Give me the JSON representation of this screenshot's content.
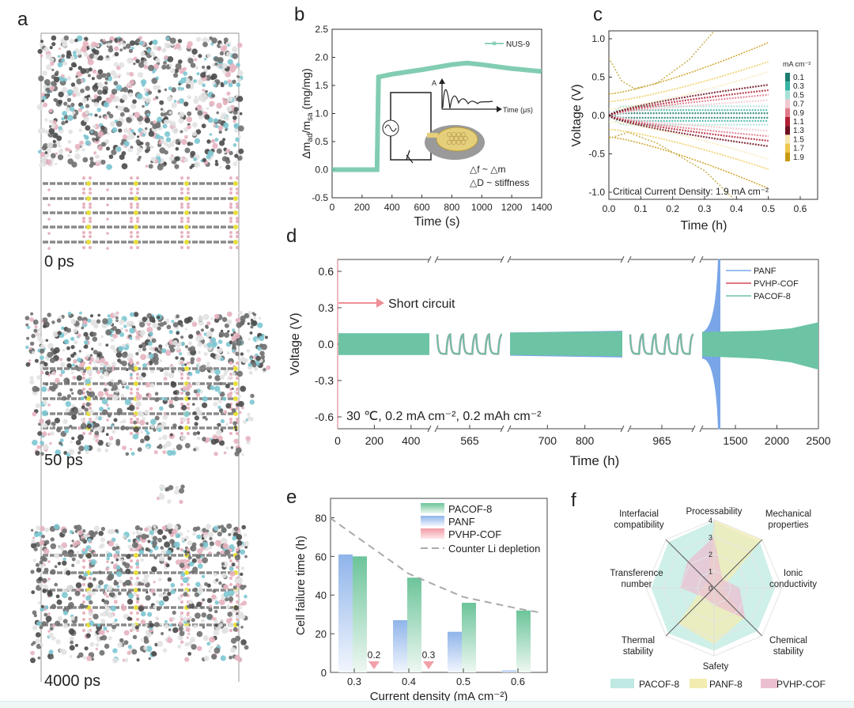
{
  "panel_labels": {
    "a": "a",
    "b": "b",
    "c": "c",
    "d": "d",
    "e": "e",
    "f": "f"
  },
  "panel_a": {
    "frames": [
      "0 ps",
      "50 ps",
      "4000 ps"
    ],
    "atom_colors": {
      "carbon": "#6f6f6f",
      "dark": "#4a4a4a",
      "nitrogen": "#7cc6d2",
      "oxygen": "#e6b3bf",
      "hydrogen": "#e2e2e2",
      "sulfur": "#e9e03a"
    }
  },
  "chart_data": [
    {
      "panel": "b",
      "type": "line",
      "xlabel": "Time (s)",
      "ylabel_parts": [
        "Δm",
        "ad",
        "/m",
        "sa",
        " (mg/mg)"
      ],
      "xlim": [
        0,
        1400
      ],
      "ylim": [
        -0.5,
        2.5
      ],
      "xticks": [
        "0",
        "200",
        "400",
        "600",
        "800",
        "1000",
        "1200",
        "1400"
      ],
      "yticks": [
        "-0.5",
        "0.0",
        "0.5",
        "1.0",
        "1.5",
        "2.0",
        "2.5"
      ],
      "legend": "top-right",
      "series": [
        {
          "name": "NUS-9",
          "color": "#6cc4a4",
          "points": [
            [
              0,
              0
            ],
            [
              300,
              0
            ],
            [
              310,
              1.65
            ],
            [
              400,
              1.7
            ],
            [
              600,
              1.78
            ],
            [
              800,
              1.87
            ],
            [
              900,
              1.9
            ],
            [
              1000,
              1.87
            ],
            [
              1200,
              1.8
            ],
            [
              1400,
              1.75
            ]
          ]
        }
      ],
      "inset": {
        "amp_label": "A",
        "time_label": "Time (μs)",
        "eq1": "△f ~ △m",
        "eq2": "△D ~ stiffness"
      }
    },
    {
      "panel": "c",
      "type": "line",
      "xlabel": "Time (h)",
      "ylabel": "Voltage (V)",
      "xlim": [
        0,
        0.65
      ],
      "ylim": [
        -1.1,
        1.1
      ],
      "xticks": [
        "0.0",
        "0.1",
        "0.2",
        "0.3",
        "0.4",
        "0.5",
        "0.6"
      ],
      "yticks": [
        "-1.0",
        "-0.5",
        "0.0",
        "0.5",
        "1.0"
      ],
      "colorbar_title": "mA cm⁻²",
      "colorbar_labels": [
        "0.1",
        "0.3",
        "0.5",
        "0.7",
        "0.9",
        "1.1",
        "1.3",
        "1.5",
        "1.7",
        "1.9"
      ],
      "colorbar_colors": [
        "#1d7d70",
        "#36b3a3",
        "#a9e0d8",
        "#f0c9d0",
        "#e07a8a",
        "#b21e33",
        "#6d1020",
        "#f6e7b0",
        "#efc54a",
        "#c89a12"
      ],
      "curve_end_voltage": [
        0.03,
        0.07,
        0.12,
        0.2,
        0.27,
        0.33,
        0.4,
        0.57,
        0.7,
        0.95
      ],
      "critical_upper": [
        [
          0,
          0.75
        ],
        [
          0.04,
          0.45
        ],
        [
          0.08,
          0.35
        ],
        [
          0.15,
          0.42
        ],
        [
          0.25,
          0.72
        ],
        [
          0.33,
          1.1
        ]
      ],
      "critical_lower": [
        [
          0,
          -0.3
        ],
        [
          0.06,
          -0.22
        ],
        [
          0.15,
          -0.36
        ],
        [
          0.3,
          -0.72
        ],
        [
          0.39,
          -1.08
        ]
      ],
      "annotation": "Critical Current Density: 1.9 mA cm⁻²"
    },
    {
      "panel": "d",
      "type": "line",
      "xlabel": "Time (h)",
      "ylabel": "Voltage (V)",
      "ylim": [
        -0.7,
        0.7
      ],
      "yticks": [
        "-0.6",
        "-0.3",
        "0.0",
        "0.3",
        "0.6"
      ],
      "x_segments": [
        {
          "range": [
            0,
            500
          ],
          "ticks": [
            "0",
            "200",
            "400"
          ]
        },
        {
          "range": [
            540,
            590
          ],
          "ticks": [
            "565"
          ]
        },
        {
          "range": [
            600,
            900
          ],
          "ticks": [
            "700",
            "800"
          ]
        },
        {
          "range": [
            940,
            990
          ],
          "ticks": [
            "965"
          ]
        },
        {
          "range": [
            1100,
            2500
          ],
          "ticks": [
            "1500",
            "2000",
            "2500"
          ]
        }
      ],
      "legend": "top-right",
      "series": [
        {
          "name": "PANF",
          "color": "#7aa6e8",
          "short_circuit_time": 1300
        },
        {
          "name": "PVHP-COF",
          "color": "#d9485c"
        },
        {
          "name": "PACOF-8",
          "color": "#6cc4a4",
          "amplitude_start": 0.09,
          "amplitude_end_upper": 0.18,
          "amplitude_end_lower": -0.21
        }
      ],
      "annotation_short": "Short circuit",
      "conditions": "30 ℃,  0.2 mA cm⁻²,  0.2 mAh cm⁻²"
    },
    {
      "panel": "e",
      "type": "bar",
      "xlabel": "Current density (mA cm⁻²)",
      "ylabel": "Cell failure time (h)",
      "categories": [
        "0.3",
        "0.4",
        "0.5",
        "0.6"
      ],
      "ylim": [
        0,
        90
      ],
      "yticks": [
        "0",
        "20",
        "40",
        "60",
        "80"
      ],
      "legend": "top-right",
      "series": [
        {
          "name": "PACOF-8",
          "color": "#6cc49a",
          "values": [
            60,
            49,
            36,
            32
          ]
        },
        {
          "name": "PANF",
          "color": "#8fb4ea",
          "values": [
            61,
            27,
            21,
            1
          ]
        },
        {
          "name": "PVHP-COF",
          "color": "#f0a0a8",
          "values": [
            0.2,
            0.3,
            null,
            null
          ],
          "labels": [
            "0.2",
            "0.3"
          ]
        }
      ],
      "reference_line": {
        "name": "Counter Li depletion",
        "color": "#aaaaaa",
        "points": [
          [
            0.255,
            80
          ],
          [
            0.3,
            71
          ],
          [
            0.4,
            51
          ],
          [
            0.5,
            39
          ],
          [
            0.6,
            33
          ],
          [
            0.64,
            31
          ]
        ]
      }
    },
    {
      "panel": "f",
      "type": "radar",
      "axes": [
        "Processability",
        "Mechanical\nproperties",
        "Ionic\nconductivity",
        "Chemical\nstability",
        "Safety",
        "Thermal\nstability",
        "Transference\nnumber",
        "Interfacial\ncompatibility"
      ],
      "rlim": [
        0,
        4
      ],
      "rticks": [
        "0",
        "1",
        "2",
        "3",
        "4"
      ],
      "legend": "bottom",
      "series": [
        {
          "name": "PACOF-8",
          "color": "#bfe9e2",
          "values": [
            3.9,
            3.8,
            3.6,
            3.6,
            3.7,
            3.8,
            3.7,
            3.8
          ]
        },
        {
          "name": "PANF-8",
          "color": "#f3ecb0",
          "values": [
            4,
            4,
            0.5,
            2.5,
            3.3,
            3,
            0.7,
            0.5
          ]
        },
        {
          "name": "PVHP-COF",
          "color": "#ebbfd0",
          "values": [
            3,
            0.7,
            1.5,
            2.6,
            1,
            0.8,
            2,
            2.2
          ]
        }
      ]
    }
  ]
}
